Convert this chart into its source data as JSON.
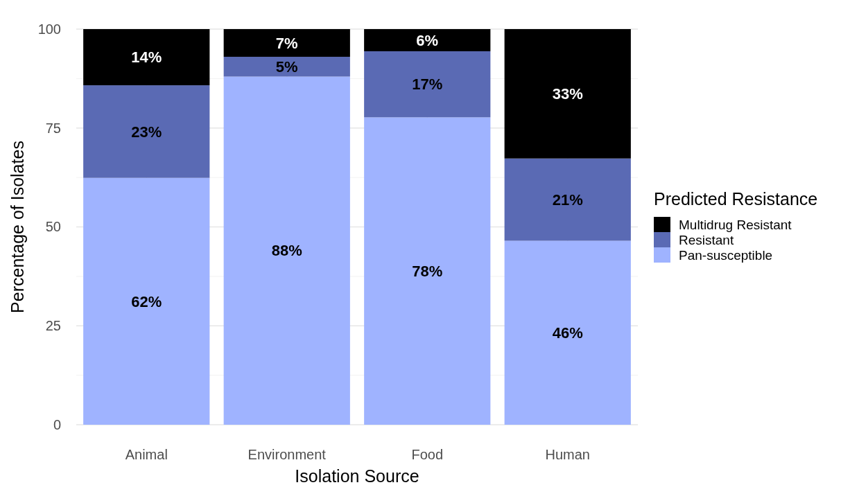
{
  "chart_data": {
    "type": "bar",
    "stacked": true,
    "xlabel": "Isolation Source",
    "ylabel": "Percentage of Isolates",
    "legend_title": "Predicted Resistance",
    "categories": [
      "Animal",
      "Environment",
      "Food",
      "Human"
    ],
    "series": [
      {
        "name": "Pan-susceptible",
        "color": "#9fb3ff",
        "values": [
          62.4,
          88,
          77.7,
          46.5
        ],
        "value_labels": [
          "62%",
          "88%",
          "78%",
          "46%"
        ]
      },
      {
        "name": "Resistant",
        "color": "#5a6ab4",
        "values": [
          23.4,
          5,
          16.7,
          20.8
        ],
        "value_labels": [
          "23%",
          "5%",
          "17%",
          "21%"
        ]
      },
      {
        "name": "Multidrug Resistant",
        "color": "#000000",
        "values": [
          14.2,
          7,
          5.6,
          32.7
        ],
        "value_labels": [
          "14%",
          "7%",
          "6%",
          "33%"
        ]
      }
    ],
    "ylim": [
      0,
      100
    ],
    "yticks": [
      0,
      25,
      50,
      75,
      100
    ],
    "grid": true,
    "legend": "right"
  }
}
